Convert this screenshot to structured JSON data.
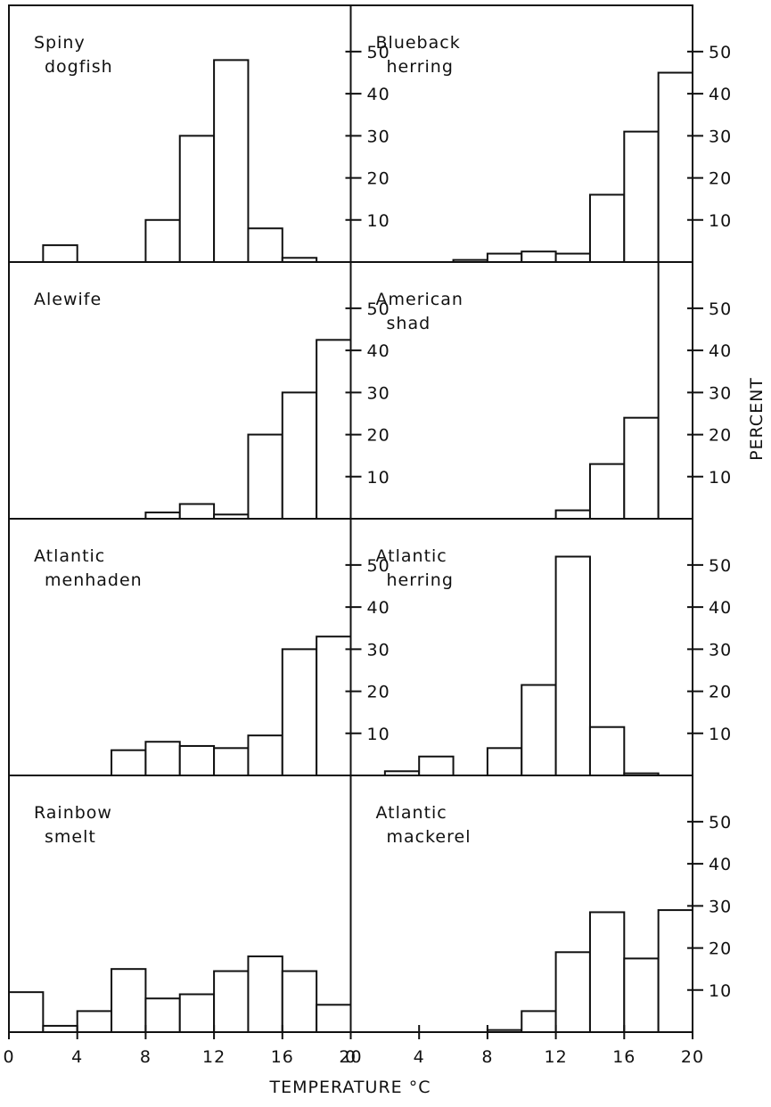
{
  "chart_data": [
    {
      "type": "histogram",
      "title": [
        "Spiny",
        "dogfish"
      ],
      "bins": [
        0,
        2,
        4,
        6,
        8,
        10,
        12,
        14,
        16,
        18,
        20
      ],
      "values": [
        0,
        4,
        0,
        0,
        10,
        30,
        48,
        8,
        1,
        0
      ],
      "xlim": [
        0,
        20
      ],
      "ylim": [
        0,
        61
      ],
      "yticks": [
        10,
        20,
        30,
        40,
        50
      ]
    },
    {
      "type": "histogram",
      "title": [
        "Blueback",
        "herring"
      ],
      "bins": [
        0,
        2,
        4,
        6,
        8,
        10,
        12,
        14,
        16,
        18,
        20
      ],
      "values": [
        0,
        0,
        0,
        0.5,
        2,
        2.5,
        2,
        16,
        31,
        45
      ],
      "xlim": [
        0,
        20
      ],
      "ylim": [
        0,
        61
      ],
      "yticks": [
        10,
        20,
        30,
        40,
        50
      ]
    },
    {
      "type": "histogram",
      "title": [
        "Alewife"
      ],
      "bins": [
        0,
        2,
        4,
        6,
        8,
        10,
        12,
        14,
        16,
        18,
        20
      ],
      "values": [
        0,
        0,
        0,
        0,
        1.5,
        3.5,
        1,
        20,
        30,
        42.5
      ],
      "xlim": [
        0,
        20
      ],
      "ylim": [
        0,
        61
      ],
      "yticks": [
        10,
        20,
        30,
        40,
        50
      ]
    },
    {
      "type": "histogram",
      "title": [
        "American",
        "shad"
      ],
      "bins": [
        0,
        2,
        4,
        6,
        8,
        10,
        12,
        14,
        16,
        18,
        20
      ],
      "values": [
        0,
        0,
        0,
        0,
        0,
        0,
        2,
        13,
        24,
        61
      ],
      "xlim": [
        0,
        20
      ],
      "ylim": [
        0,
        61
      ],
      "yticks": [
        10,
        20,
        30,
        40,
        50
      ]
    },
    {
      "type": "histogram",
      "title": [
        "Atlantic",
        "menhaden"
      ],
      "bins": [
        0,
        2,
        4,
        6,
        8,
        10,
        12,
        14,
        16,
        18,
        20
      ],
      "values": [
        0,
        0,
        0,
        6,
        8,
        7,
        6.5,
        9.5,
        30,
        33
      ],
      "xlim": [
        0,
        20
      ],
      "ylim": [
        0,
        61
      ],
      "yticks": [
        10,
        20,
        30,
        40,
        50
      ]
    },
    {
      "type": "histogram",
      "title": [
        "Atlantic",
        "herring"
      ],
      "bins": [
        0,
        2,
        4,
        6,
        8,
        10,
        12,
        14,
        16,
        18,
        20
      ],
      "values": [
        0,
        1,
        4.5,
        0,
        6.5,
        21.5,
        52,
        11.5,
        0.5,
        0
      ],
      "xlim": [
        0,
        20
      ],
      "ylim": [
        0,
        61
      ],
      "yticks": [
        10,
        20,
        30,
        40,
        50
      ]
    },
    {
      "type": "histogram",
      "title": [
        "Rainbow",
        "smelt"
      ],
      "bins": [
        0,
        2,
        4,
        6,
        8,
        10,
        12,
        14,
        16,
        18,
        20
      ],
      "values": [
        9.5,
        1.5,
        5,
        15,
        8,
        9,
        14.5,
        18,
        14.5,
        6.5
      ],
      "xlim": [
        0,
        20
      ],
      "ylim": [
        0,
        61
      ],
      "xticks": [
        0,
        4,
        8,
        12,
        16,
        20
      ]
    },
    {
      "type": "histogram",
      "title": [
        "Atlantic",
        "mackerel"
      ],
      "bins": [
        0,
        2,
        4,
        6,
        8,
        10,
        12,
        14,
        16,
        18,
        20
      ],
      "values": [
        0,
        0,
        0,
        0,
        0.5,
        5,
        19,
        28.5,
        17.5,
        29
      ],
      "xlim": [
        0,
        20
      ],
      "ylim": [
        0,
        61
      ],
      "yticks": [
        10,
        20,
        30,
        40,
        50
      ],
      "xticks": [
        0,
        4,
        8,
        12,
        16,
        20
      ]
    }
  ],
  "xlabel": "TEMPERATURE °C",
  "ylabel": "PERCENT"
}
